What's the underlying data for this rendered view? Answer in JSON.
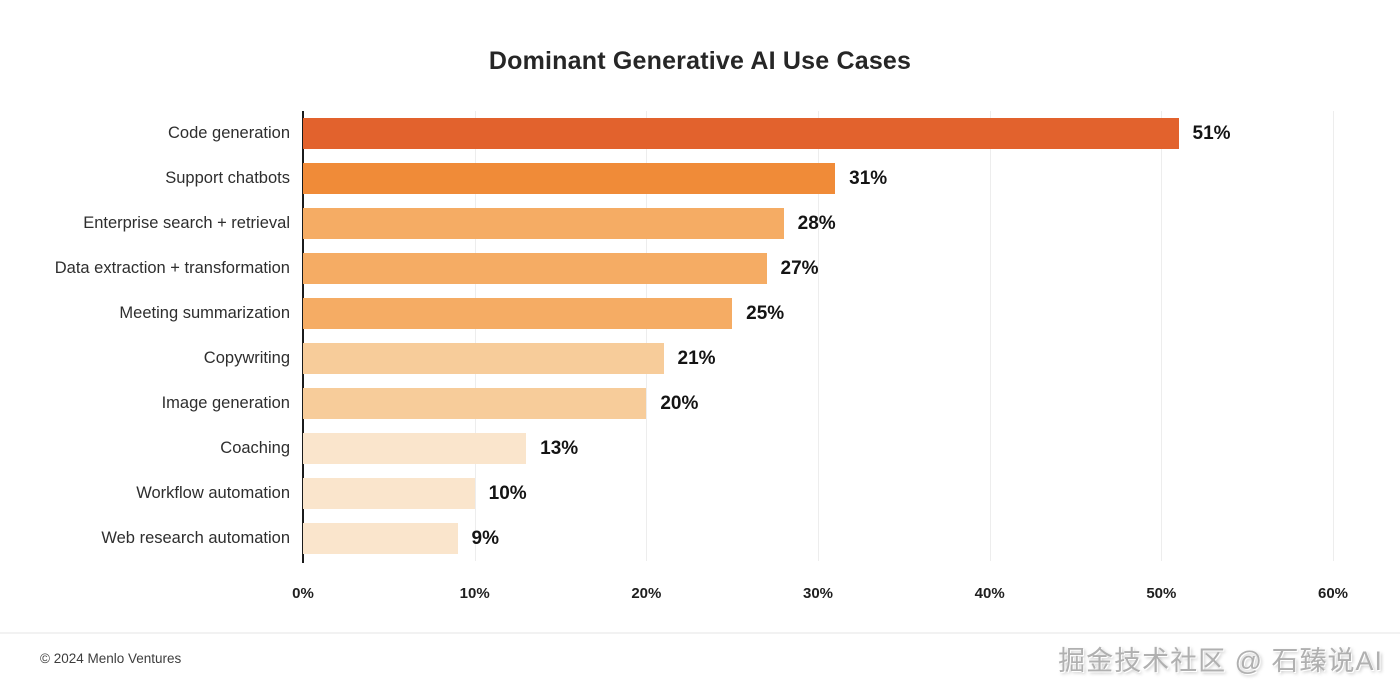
{
  "title": "Dominant Generative AI Use Cases",
  "chart_data": {
    "type": "bar",
    "orientation": "horizontal",
    "title": "Dominant Generative AI Use Cases",
    "categories": [
      "Code generation",
      "Support chatbots",
      "Enterprise search + retrieval",
      "Data extraction + transformation",
      "Meeting summarization",
      "Copywriting",
      "Image generation",
      "Coaching",
      "Workflow automation",
      "Web research automation"
    ],
    "values": [
      51,
      31,
      28,
      27,
      25,
      21,
      20,
      13,
      10,
      9
    ],
    "value_labels": [
      "51%",
      "31%",
      "28%",
      "27%",
      "25%",
      "21%",
      "20%",
      "13%",
      "10%",
      "9%"
    ],
    "bar_colors": [
      "#E2622D",
      "#F08B38",
      "#F5AC64",
      "#F5AC64",
      "#F5AC64",
      "#F7CC9A",
      "#F7CC9A",
      "#FAE5CC",
      "#FAE5CC",
      "#FAE5CC"
    ],
    "xlabel": "",
    "ylabel": "",
    "xlim": [
      0,
      60
    ],
    "x_tick_values": [
      0,
      10,
      20,
      30,
      40,
      50,
      60
    ],
    "x_tick_labels": [
      "0%",
      "10%",
      "20%",
      "30%",
      "40%",
      "50%",
      "60%"
    ],
    "grid": "vertical light gridlines at each 10%",
    "legend": "none"
  },
  "colors": {
    "axis_line": "#1b1b1b",
    "gridline": "#ededed",
    "title_text": "#262626",
    "category_text": "#2e2e2e",
    "value_text": "#141414"
  },
  "footer": {
    "copyright": "© 2024 Menlo Ventures",
    "watermark": "掘金技术社区 @ 石臻说AI"
  }
}
